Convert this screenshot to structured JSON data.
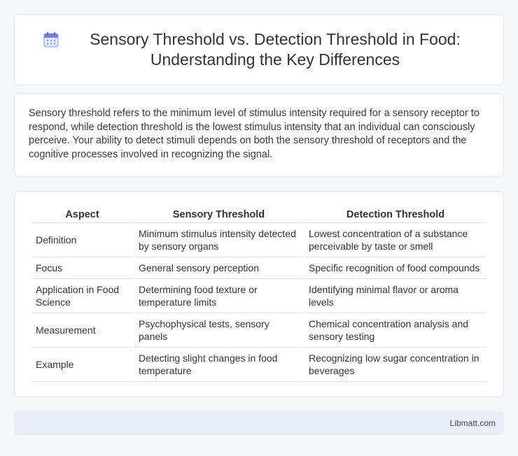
{
  "header": {
    "icon": "calendar-icon",
    "title": "Sensory Threshold vs. Detection Threshold in Food: Understanding the Key Differences"
  },
  "intro": {
    "text": "Sensory threshold refers to the minimum level of stimulus intensity required for a sensory receptor to respond, while detection threshold is the lowest stimulus intensity that an individual can consciously perceive. Your ability to detect stimuli depends on both the sensory threshold of receptors and the cognitive processes involved in recognizing the signal."
  },
  "table": {
    "headers": [
      "Aspect",
      "Sensory Threshold",
      "Detection Threshold"
    ],
    "rows": [
      [
        "Definition",
        "Minimum stimulus intensity detected by sensory organs",
        "Lowest concentration of a substance perceivable by taste or smell"
      ],
      [
        "Focus",
        "General sensory perception",
        "Specific recognition of food compounds"
      ],
      [
        "Application in Food Science",
        "Determining food texture or temperature limits",
        "Identifying minimal flavor or aroma levels"
      ],
      [
        "Measurement",
        "Psychophysical tests, sensory panels",
        "Chemical concentration analysis and sensory testing"
      ],
      [
        "Example",
        "Detecting slight changes in food temperature",
        "Recognizing low sugar concentration in beverages"
      ]
    ]
  },
  "footer": {
    "brand": "Libmatt.com"
  }
}
